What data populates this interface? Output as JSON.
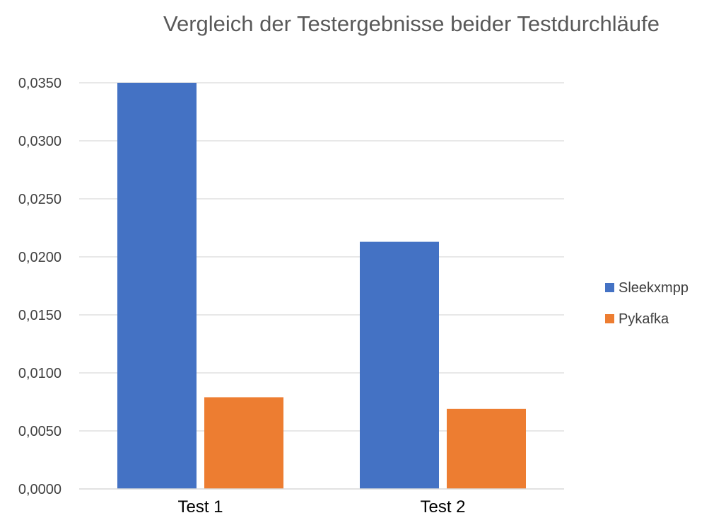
{
  "chart_data": {
    "type": "bar",
    "title": "Vergleich der Testergebnisse beider Testdurchläufe",
    "xlabel": "",
    "ylabel": "",
    "categories": [
      "Test 1",
      "Test 2"
    ],
    "series": [
      {
        "name": "Sleekxmpp",
        "color": "#4472c4",
        "values": [
          0.035,
          0.0213
        ]
      },
      {
        "name": "Pykafka",
        "color": "#ed7d31",
        "values": [
          0.0079,
          0.0069
        ]
      }
    ],
    "ylim": [
      0,
      0.035
    ],
    "yticks": [
      {
        "value": 0.0,
        "label": "0,0000"
      },
      {
        "value": 0.005,
        "label": "0,0050"
      },
      {
        "value": 0.01,
        "label": "0,0100"
      },
      {
        "value": 0.015,
        "label": "0,0150"
      },
      {
        "value": 0.02,
        "label": "0,0200"
      },
      {
        "value": 0.025,
        "label": "0,0250"
      },
      {
        "value": 0.03,
        "label": "0,0300"
      },
      {
        "value": 0.035,
        "label": "0,0350"
      }
    ],
    "grid": true,
    "legend_position": "right"
  }
}
